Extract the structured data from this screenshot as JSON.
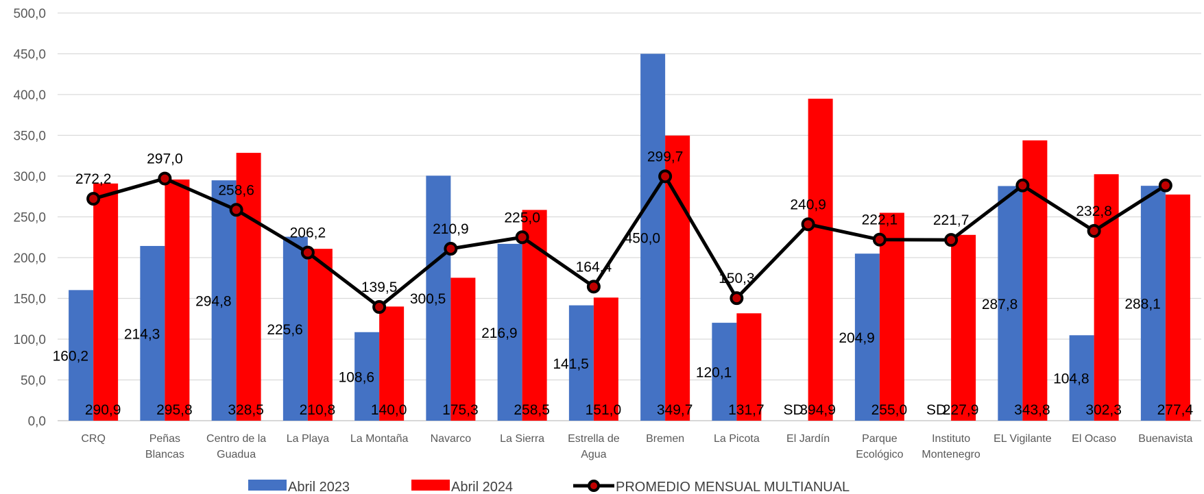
{
  "chart_data": {
    "type": "bar",
    "title": "",
    "xlabel": "",
    "ylabel": "",
    "ylim": [
      0,
      500
    ],
    "yticks": [
      "0,0",
      "50,0",
      "100,0",
      "150,0",
      "200,0",
      "250,0",
      "300,0",
      "350,0",
      "400,0",
      "450,0",
      "500,0"
    ],
    "grid": true,
    "legend_position": "bottom",
    "categories": [
      [
        "CRQ"
      ],
      [
        "Peñas",
        "Blancas"
      ],
      [
        "Centro de la",
        "Guadua"
      ],
      [
        "La Playa"
      ],
      [
        "La Montaña"
      ],
      [
        "Navarco"
      ],
      [
        "La Sierra"
      ],
      [
        "Estrella de",
        "Agua"
      ],
      [
        "Bremen"
      ],
      [
        "La Picota"
      ],
      [
        "El Jardín"
      ],
      [
        "Parque",
        "Ecológico"
      ],
      [
        "Instituto",
        "Montenegro"
      ],
      [
        "EL Vigilante"
      ],
      [
        "El Ocaso"
      ],
      [
        "Buenavista"
      ]
    ],
    "series": [
      {
        "name": "Abril 2023",
        "kind": "bar",
        "color": "#4472C4",
        "values": [
          160.2,
          214.3,
          294.8,
          225.6,
          108.6,
          300.5,
          216.9,
          141.5,
          450.0,
          120.1,
          null,
          204.9,
          null,
          287.8,
          104.8,
          288.1
        ],
        "labels": [
          "160,2",
          "214,3",
          "294,8",
          "225,6",
          "108,6",
          "300,5",
          "216,9",
          "141,5",
          "450,0",
          "120,1",
          "SD",
          "204,9",
          "SD",
          "287,8",
          "104,8",
          "288,1"
        ]
      },
      {
        "name": "Abril 2024",
        "kind": "bar",
        "color": "#FF0000",
        "values": [
          290.9,
          295.8,
          328.5,
          210.8,
          140.0,
          175.3,
          258.5,
          151.0,
          349.7,
          131.7,
          394.9,
          255.0,
          227.9,
          343.8,
          302.3,
          277.4
        ],
        "labels": [
          "290,9",
          "295,8",
          "328,5",
          "210,8",
          "140,0",
          "175,3",
          "258,5",
          "151,0",
          "349,7",
          "131,7",
          "394,9",
          "255,0",
          "227,9",
          "343,8",
          "302,3",
          "277,4"
        ]
      },
      {
        "name": "PROMEDIO MENSUAL MULTIANUAL",
        "kind": "line",
        "color": "#000000",
        "marker_color": "#C00000",
        "values": [
          272.2,
          297.0,
          258.6,
          206.2,
          139.5,
          210.9,
          225.0,
          164.4,
          299.7,
          150.3,
          240.9,
          222.1,
          221.7,
          288.5,
          232.8,
          288.5
        ],
        "labels": [
          "272,2",
          "297,0",
          "258,6",
          "206,2",
          "139,5",
          "210,9",
          "225,0",
          "164,4",
          "299,7",
          "150,3",
          "240,9",
          "222,1",
          "221,7",
          "",
          "232,8",
          ""
        ]
      }
    ]
  }
}
